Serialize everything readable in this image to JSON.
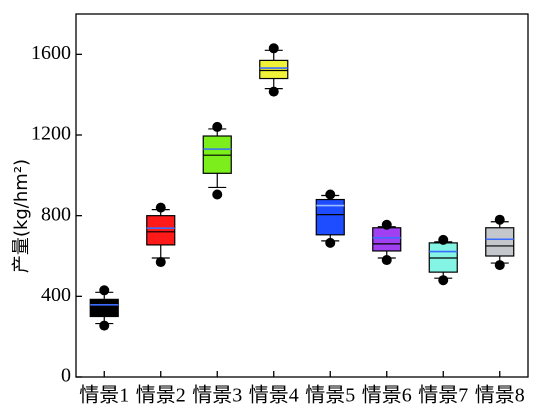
{
  "chart_data": {
    "type": "box",
    "ylabel": "产量(kg/hm²)",
    "xlabel": "",
    "ylim": [
      0,
      1800
    ],
    "yticks": [
      0,
      400,
      800,
      1200,
      1600
    ],
    "yticklabels": [
      "0",
      "400",
      "800",
      "1200",
      "1600"
    ],
    "categories": [
      "情景1",
      "情景2",
      "情景3",
      "情景4",
      "情景5",
      "情景6",
      "情景7",
      "情景8"
    ],
    "grid": false,
    "boxes": [
      {
        "whisker_low": 265,
        "q1": 300,
        "median": 340,
        "mean": 358,
        "q3": 385,
        "whisker_high": 420,
        "outliers": [
          255,
          430
        ],
        "color": "#000000",
        "mean_color": "#3b6cff"
      },
      {
        "whisker_low": 590,
        "q1": 655,
        "median": 720,
        "mean": 738,
        "q3": 800,
        "whisker_high": 830,
        "outliers": [
          570,
          840
        ],
        "color": "#ff1a1a",
        "mean_color": "#3b6cff"
      },
      {
        "whisker_low": 940,
        "q1": 1010,
        "median": 1100,
        "mean": 1130,
        "q3": 1195,
        "whisker_high": 1230,
        "outliers": [
          905,
          1240
        ],
        "color": "#7bee1c",
        "mean_color": "#3b6cff"
      },
      {
        "whisker_low": 1430,
        "q1": 1480,
        "median": 1520,
        "mean": 1532,
        "q3": 1570,
        "whisker_high": 1620,
        "outliers": [
          1415,
          1630
        ],
        "color": "#f0f23a",
        "mean_color": "#3b6cff"
      },
      {
        "whisker_low": 675,
        "q1": 705,
        "median": 805,
        "mean": 850,
        "q3": 880,
        "whisker_high": 900,
        "outliers": [
          665,
          905
        ],
        "color": "#1e4dff",
        "mean_color": "#9bbcff"
      },
      {
        "whisker_low": 590,
        "q1": 625,
        "median": 660,
        "mean": 690,
        "q3": 740,
        "whisker_high": 745,
        "outliers": [
          580,
          755
        ],
        "color": "#a040f0",
        "mean_color": "#3b6cff"
      },
      {
        "whisker_low": 490,
        "q1": 520,
        "median": 590,
        "mean": 622,
        "q3": 665,
        "whisker_high": 670,
        "outliers": [
          480,
          680
        ],
        "color": "#84f5e4",
        "mean_color": "#3b6cff"
      },
      {
        "whisker_low": 565,
        "q1": 600,
        "median": 650,
        "mean": 683,
        "q3": 740,
        "whisker_high": 770,
        "outliers": [
          555,
          780
        ],
        "color": "#c4c8cc",
        "mean_color": "#3b6cff"
      }
    ]
  }
}
